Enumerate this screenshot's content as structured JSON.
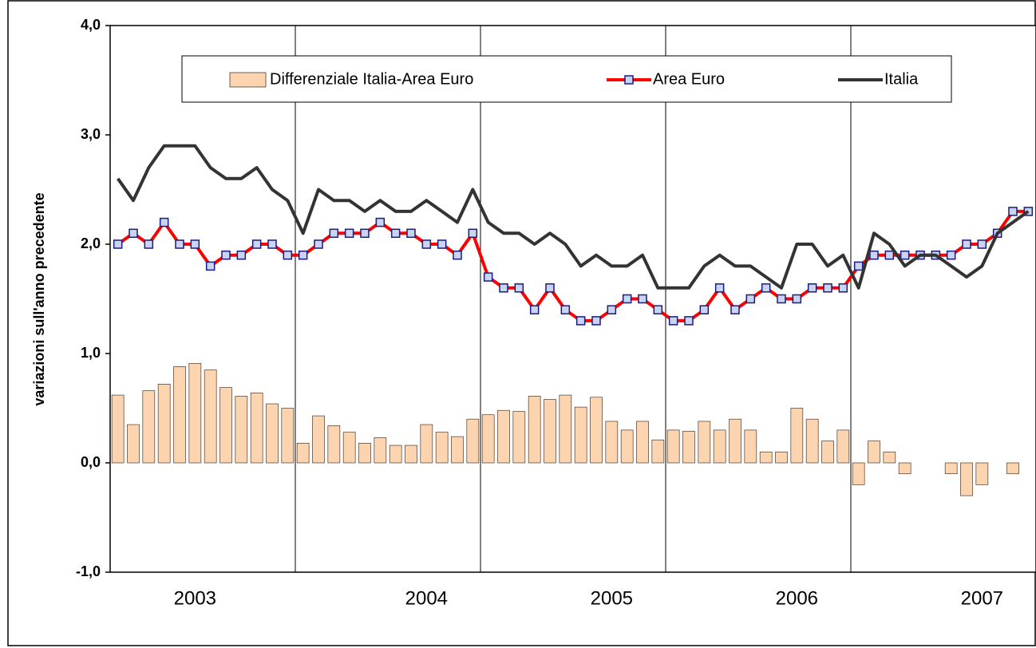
{
  "chart_data": {
    "type": "bar",
    "y_label": "variazioni sull'anno precedente",
    "categories": [
      null,
      null,
      null,
      null,
      null,
      "2003",
      null,
      null,
      null,
      null,
      null,
      null,
      null,
      null,
      null,
      null,
      null,
      null,
      null,
      null,
      "2004",
      null,
      null,
      null,
      null,
      null,
      null,
      null,
      null,
      null,
      null,
      null,
      "2005",
      null,
      null,
      null,
      null,
      null,
      null,
      null,
      null,
      null,
      null,
      null,
      "2006",
      null,
      null,
      null,
      null,
      null,
      null,
      null,
      null,
      null,
      null,
      null,
      "2007",
      null,
      null,
      null
    ],
    "series": [
      {
        "name": "Differenziale Italia-Area Euro",
        "type": "bar",
        "color": "#fcd5b0",
        "values": [
          0.62,
          0.35,
          0.66,
          0.72,
          0.88,
          0.91,
          0.85,
          0.69,
          0.61,
          0.64,
          0.54,
          0.5,
          0.18,
          0.43,
          0.34,
          0.28,
          0.18,
          0.23,
          0.16,
          0.16,
          0.35,
          0.28,
          0.24,
          0.4,
          0.44,
          0.48,
          0.47,
          0.61,
          0.58,
          0.62,
          0.51,
          0.6,
          0.38,
          0.3,
          0.38,
          0.21,
          0.3,
          0.29,
          0.38,
          0.3,
          0.4,
          0.3,
          0.1,
          0.1,
          0.5,
          0.4,
          0.2,
          0.3,
          -0.2,
          0.2,
          0.1,
          -0.1,
          0,
          0,
          -0.1,
          -0.3,
          -0.2,
          0,
          -0.1,
          0
        ]
      },
      {
        "name": "Area Euro",
        "type": "line",
        "color": "#ff0000",
        "marker": "square",
        "values": [
          2.0,
          2.1,
          2.0,
          2.2,
          2.0,
          2.0,
          1.8,
          1.9,
          1.9,
          2.0,
          2.0,
          1.9,
          1.9,
          2.0,
          2.1,
          2.1,
          2.1,
          2.2,
          2.1,
          2.1,
          2.0,
          2.0,
          1.9,
          2.1,
          1.7,
          1.6,
          1.6,
          1.4,
          1.6,
          1.4,
          1.3,
          1.3,
          1.4,
          1.5,
          1.5,
          1.4,
          1.3,
          1.3,
          1.4,
          1.6,
          1.4,
          1.5,
          1.6,
          1.5,
          1.5,
          1.6,
          1.6,
          1.6,
          1.8,
          1.9,
          1.9,
          1.9,
          1.9,
          1.9,
          1.9,
          2.0,
          2.0,
          2.1,
          2.3,
          2.3
        ]
      },
      {
        "name": "Italia",
        "type": "line",
        "color": "#333333",
        "values": [
          2.6,
          2.4,
          2.7,
          2.9,
          2.9,
          2.9,
          2.7,
          2.6,
          2.6,
          2.7,
          2.5,
          2.4,
          2.1,
          2.5,
          2.4,
          2.4,
          2.3,
          2.4,
          2.3,
          2.3,
          2.4,
          2.3,
          2.2,
          2.5,
          2.2,
          2.1,
          2.1,
          2.0,
          2.1,
          2.0,
          1.8,
          1.9,
          1.8,
          1.8,
          1.9,
          1.6,
          1.6,
          1.6,
          1.8,
          1.9,
          1.8,
          1.8,
          1.7,
          1.6,
          2.0,
          2.0,
          1.8,
          1.9,
          1.6,
          2.1,
          2.0,
          1.8,
          1.9,
          1.9,
          1.8,
          1.7,
          1.8,
          2.1,
          2.2,
          2.3
        ]
      }
    ],
    "ylim": [
      -1,
      4
    ],
    "yticks": [
      {
        "value": -1,
        "label": "-1,0"
      },
      {
        "value": 0,
        "label": "0,0"
      },
      {
        "value": 1,
        "label": "1,0"
      },
      {
        "value": 2,
        "label": "2,0"
      },
      {
        "value": 3,
        "label": "3,0"
      },
      {
        "value": 4,
        "label": "4,0"
      }
    ],
    "legend": "top"
  }
}
